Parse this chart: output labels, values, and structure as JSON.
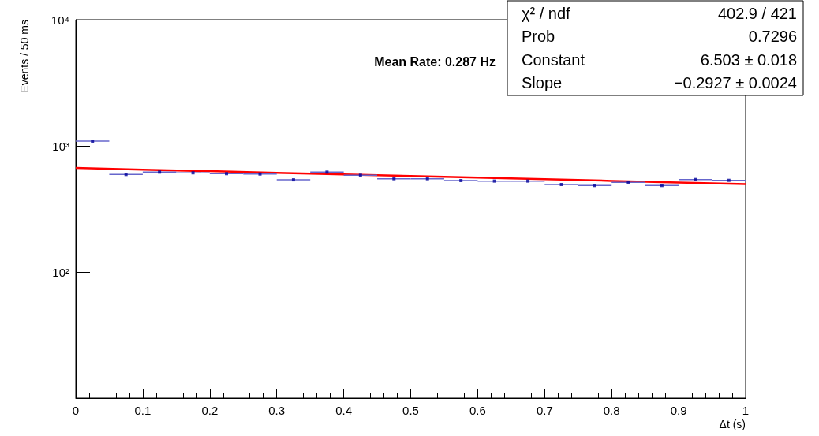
{
  "chart_data": {
    "type": "scatter",
    "xlabel": "Δt (s)",
    "ylabel": "Events / 50 ms",
    "x": [
      0.025,
      0.075,
      0.125,
      0.175,
      0.225,
      0.275,
      0.325,
      0.375,
      0.425,
      0.475,
      0.525,
      0.575,
      0.625,
      0.675,
      0.725,
      0.775,
      0.825,
      0.875,
      0.925,
      0.975
    ],
    "series": [
      {
        "color": "#000099",
        "marker": "square",
        "values": [
          1090,
          593,
          619,
          611,
          602,
          598,
          538,
          619,
          585,
          549,
          549,
          531,
          526,
          526,
          494,
          485,
          514,
          485,
          541,
          533
        ],
        "xerrors": [
          0.025,
          0.025,
          0.025,
          0.025,
          0.025,
          0.025,
          0.025,
          0.025,
          0.025,
          0.025,
          0.025,
          0.025,
          0.025,
          0.025,
          0.025,
          0.025,
          0.025,
          0.025,
          0.025,
          0.025
        ]
      },
      {
        "type": "line",
        "color": "#ff0000",
        "line_style": "solid",
        "x": [
          0,
          0.1,
          0.2,
          0.3,
          0.4,
          0.5,
          0.6,
          0.7,
          0.8,
          0.9,
          1
        ],
        "values": [
          668,
          648,
          630,
          611,
          594,
          577,
          560,
          544,
          528,
          513,
          498
        ]
      }
    ],
    "xlim": [
      0,
      1
    ],
    "xticks": [
      0,
      0.1,
      0.2,
      0.3,
      0.4,
      0.5,
      0.6,
      0.7,
      0.8,
      0.9,
      1
    ],
    "ylim": [
      10,
      10000
    ],
    "yticks": [
      {
        "value": 10,
        "label": null
      },
      {
        "value": 100,
        "label": "10²"
      },
      {
        "value": 1000,
        "label": "10³"
      },
      {
        "value": 10000,
        "label": "10⁴"
      }
    ],
    "log": "y",
    "grid": false,
    "annotations": [
      "Mean Rate: 0.287 Hz",
      "χ² / ndf",
      "402.9 / 421",
      "Prob",
      "0.7296",
      "Constant",
      "6.503 ± 0.018",
      "Slope",
      "−0.2927 ± 0.0024"
    ]
  }
}
